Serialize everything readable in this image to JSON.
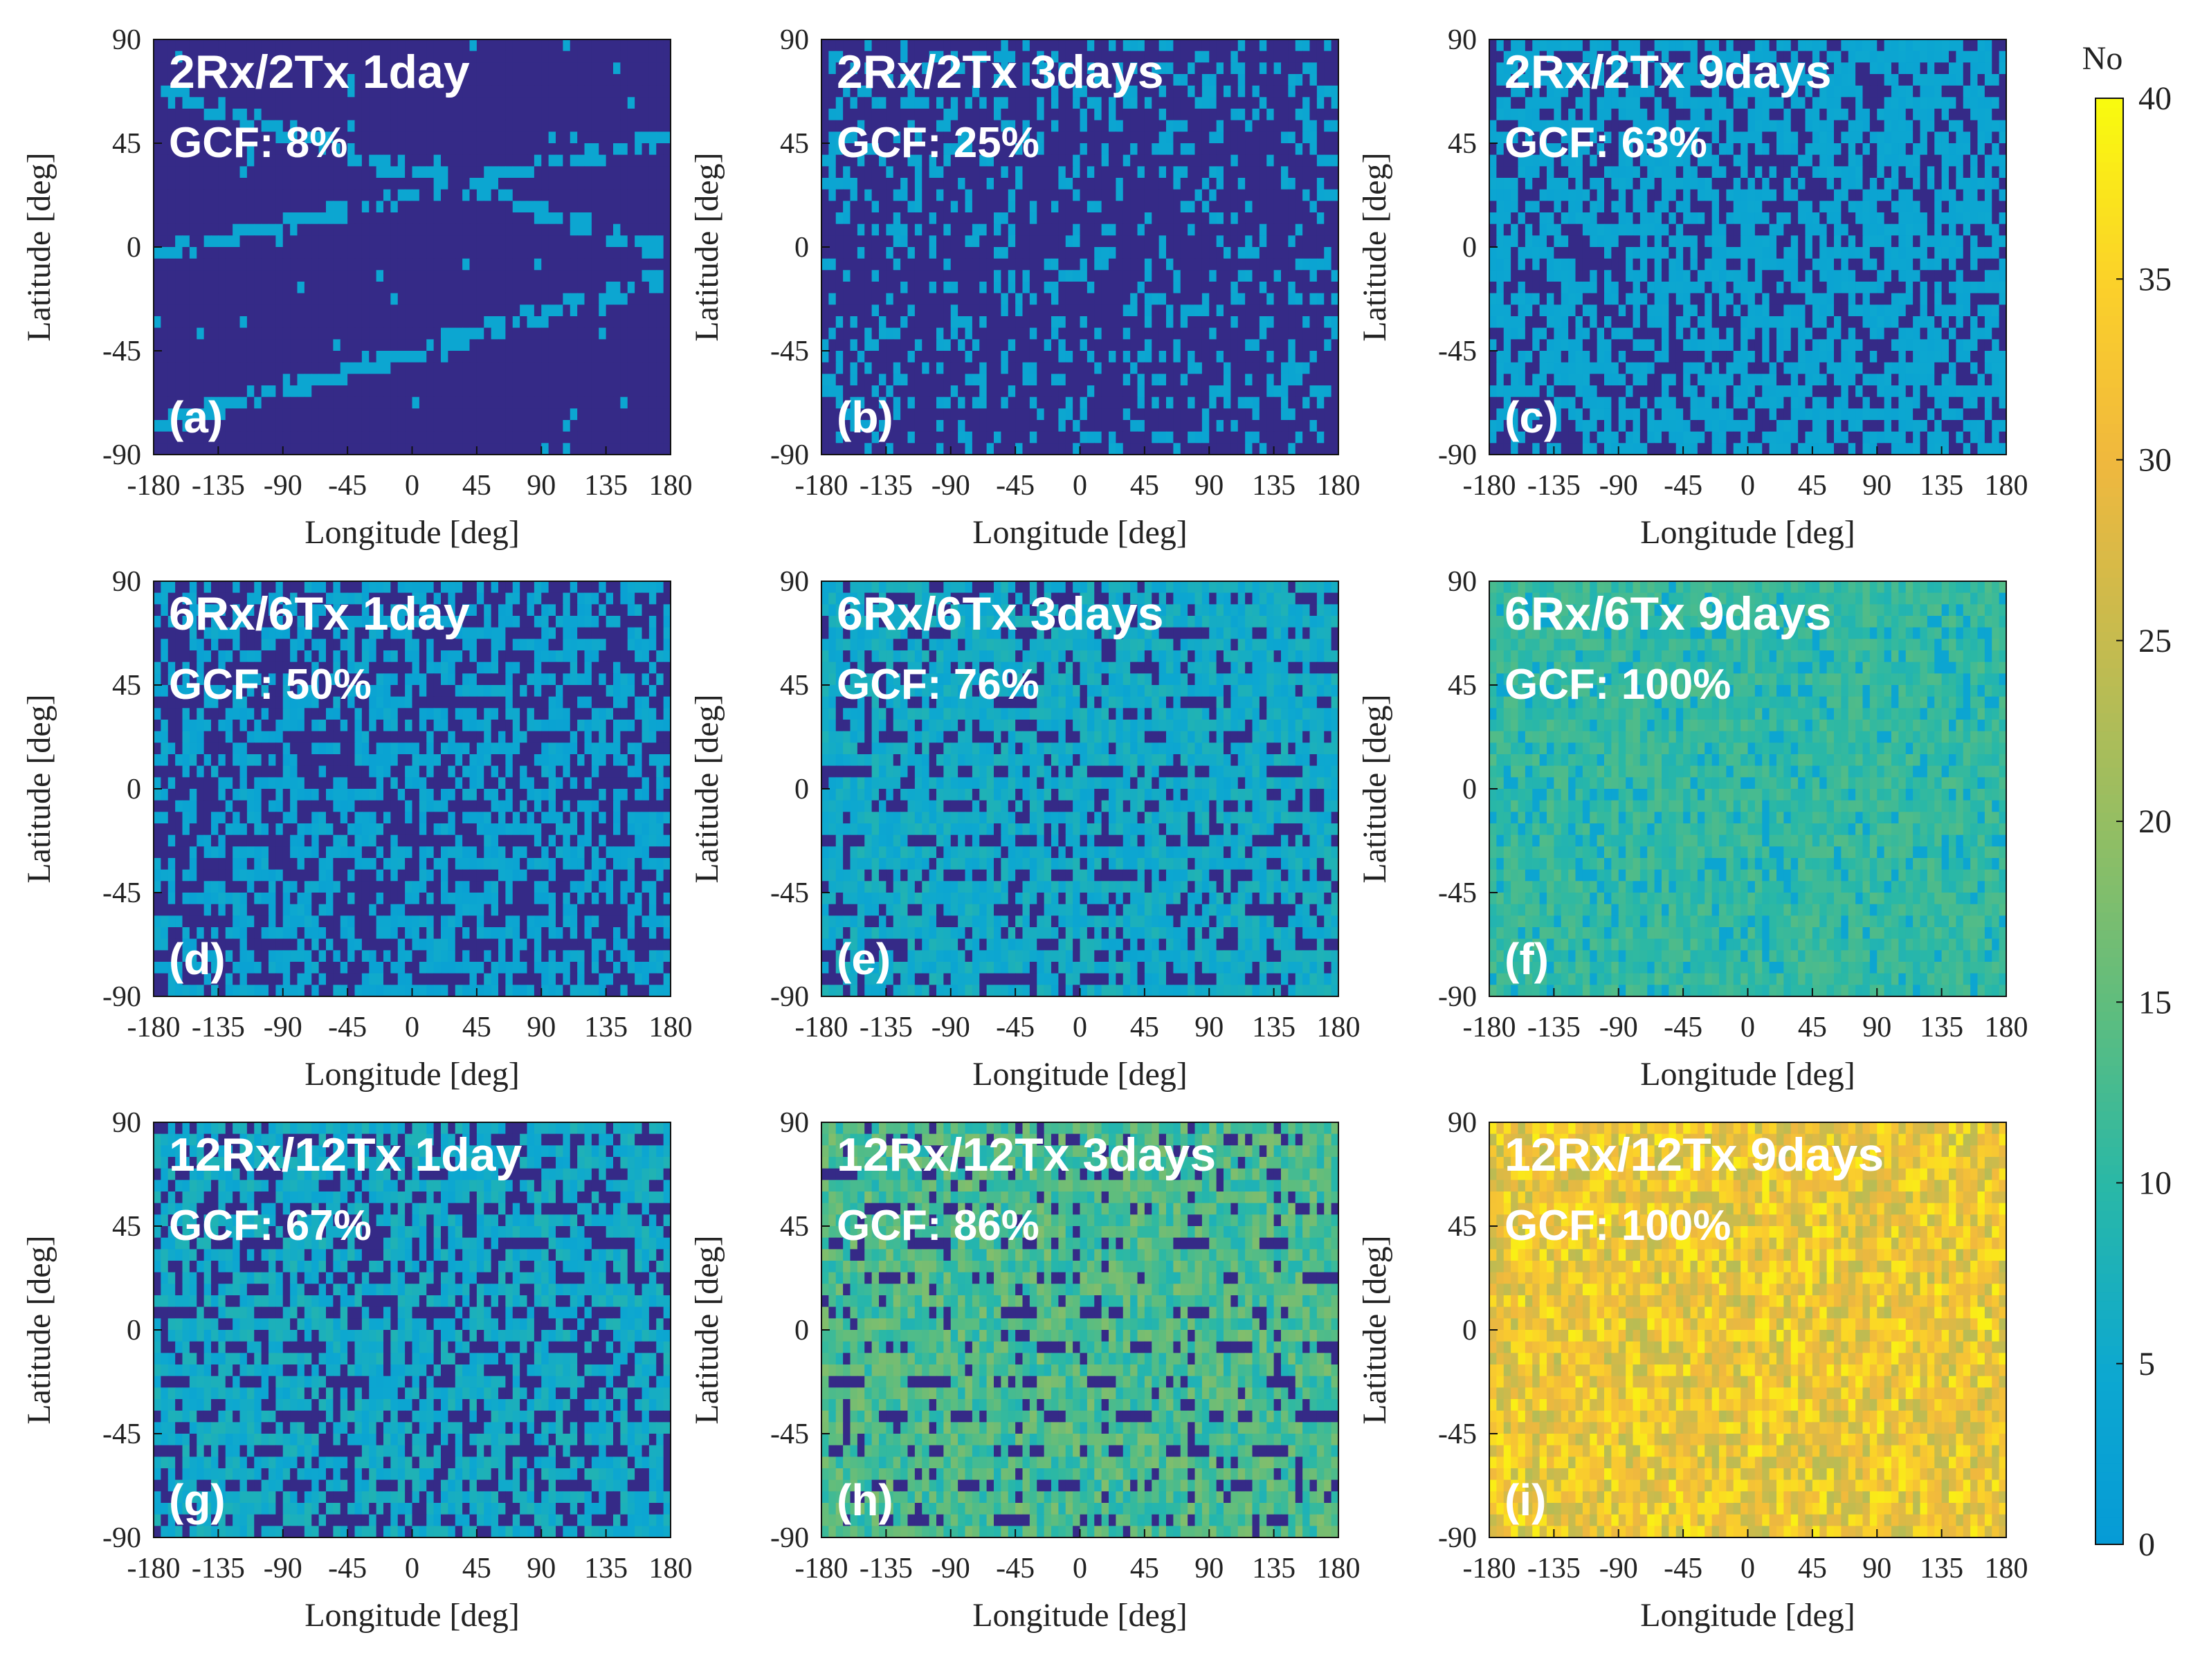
{
  "figure": {
    "colorbar": {
      "label": "No",
      "min": 0,
      "max": 40,
      "ticks": [
        0,
        5,
        10,
        15,
        20,
        25,
        30,
        35,
        40
      ]
    },
    "colors": {
      "dark_navy": "#352a87",
      "cyan_low": "#139ed2",
      "cyan_mid": "#06a4ca",
      "teal": "#36b8a0",
      "green": "#6ebd78",
      "olive": "#a8be5f",
      "orange": "#f4b93b",
      "yellow": "#f9fb0e"
    }
  },
  "chart_data": [
    {
      "type": "heatmap",
      "id": "a",
      "title": "2Rx/2Tx 1day",
      "gcf_label": "GCF: 8%",
      "panel_label": "(a)",
      "xlabel": "Longitude [deg]",
      "ylabel": "Latitude [deg]",
      "xlim": [
        -180,
        180
      ],
      "ylim": [
        -90,
        90
      ],
      "xticks": [
        "-180",
        "-135",
        "-90",
        "-45",
        "0",
        "45",
        "90",
        "135",
        "180"
      ],
      "yticks": [
        "90",
        "45",
        "0",
        "-45",
        "-90"
      ],
      "coverage_fraction": 0.08,
      "typical_value": 4,
      "pattern": "diagonal"
    },
    {
      "type": "heatmap",
      "id": "b",
      "title": "2Rx/2Tx 3days",
      "gcf_label": "GCF: 25%",
      "panel_label": "(b)",
      "xlabel": "Longitude [deg]",
      "ylabel": "Latitude [deg]",
      "xlim": [
        -180,
        180
      ],
      "ylim": [
        -90,
        90
      ],
      "xticks": [
        "-180",
        "-135",
        "-90",
        "-45",
        "0",
        "45",
        "90",
        "135",
        "180"
      ],
      "yticks": [
        "90",
        "45",
        "0",
        "-45",
        "-90"
      ],
      "coverage_fraction": 0.25,
      "typical_value": 4,
      "pattern": "scatter"
    },
    {
      "type": "heatmap",
      "id": "c",
      "title": "2Rx/2Tx 9days",
      "gcf_label": "GCF: 63%",
      "panel_label": "(c)",
      "xlabel": "Longitude [deg]",
      "ylabel": "Latitude [deg]",
      "xlim": [
        -180,
        180
      ],
      "ylim": [
        -90,
        90
      ],
      "xticks": [
        "-180",
        "-135",
        "-90",
        "-45",
        "0",
        "45",
        "90",
        "135",
        "180"
      ],
      "yticks": [
        "90",
        "45",
        "0",
        "-45",
        "-90"
      ],
      "coverage_fraction": 0.63,
      "typical_value": 4,
      "pattern": "scatter"
    },
    {
      "type": "heatmap",
      "id": "d",
      "title": "6Rx/6Tx 1day",
      "gcf_label": "GCF: 50%",
      "panel_label": "(d)",
      "xlabel": "Longitude [deg]",
      "ylabel": "Latitude [deg]",
      "xlim": [
        -180,
        180
      ],
      "ylim": [
        -90,
        90
      ],
      "xticks": [
        "-180",
        "-135",
        "-90",
        "-45",
        "0",
        "45",
        "90",
        "135",
        "180"
      ],
      "yticks": [
        "90",
        "45",
        "0",
        "-45",
        "-90"
      ],
      "coverage_fraction": 0.5,
      "typical_value": 4,
      "pattern": "bands"
    },
    {
      "type": "heatmap",
      "id": "e",
      "title": "6Rx/6Tx 3days",
      "gcf_label": "GCF: 76%",
      "panel_label": "(e)",
      "xlabel": "Longitude [deg]",
      "ylabel": "Latitude [deg]",
      "xlim": [
        -180,
        180
      ],
      "ylim": [
        -90,
        90
      ],
      "xticks": [
        "-180",
        "-135",
        "-90",
        "-45",
        "0",
        "45",
        "90",
        "135",
        "180"
      ],
      "yticks": [
        "90",
        "45",
        "0",
        "-45",
        "-90"
      ],
      "coverage_fraction": 0.76,
      "typical_value": 6,
      "pattern": "bands"
    },
    {
      "type": "heatmap",
      "id": "f",
      "title": "6Rx/6Tx 9days",
      "gcf_label": "GCF: 100%",
      "panel_label": "(f)",
      "xlabel": "Longitude [deg]",
      "ylabel": "Latitude [deg]",
      "xlim": [
        -180,
        180
      ],
      "ylim": [
        -90,
        90
      ],
      "xticks": [
        "-180",
        "-135",
        "-90",
        "-45",
        "0",
        "45",
        "90",
        "135",
        "180"
      ],
      "yticks": [
        "90",
        "45",
        "0",
        "-45",
        "-90"
      ],
      "coverage_fraction": 1.0,
      "typical_value": 11,
      "pattern": "full"
    },
    {
      "type": "heatmap",
      "id": "g",
      "title": "12Rx/12Tx 1day",
      "gcf_label": "GCF: 67%",
      "panel_label": "(g)",
      "xlabel": "Longitude [deg]",
      "ylabel": "Latitude [deg]",
      "xlim": [
        -180,
        180
      ],
      "ylim": [
        -90,
        90
      ],
      "xticks": [
        "-180",
        "-135",
        "-90",
        "-45",
        "0",
        "45",
        "90",
        "135",
        "180"
      ],
      "yticks": [
        "90",
        "45",
        "0",
        "-45",
        "-90"
      ],
      "coverage_fraction": 0.67,
      "typical_value": 6,
      "pattern": "bands"
    },
    {
      "type": "heatmap",
      "id": "h",
      "title": "12Rx/12Tx 3days",
      "gcf_label": "GCF: 86%",
      "panel_label": "(h)",
      "xlabel": "Longitude [deg]",
      "ylabel": "Latitude [deg]",
      "xlim": [
        -180,
        180
      ],
      "ylim": [
        -90,
        90
      ],
      "xticks": [
        "-180",
        "-135",
        "-90",
        "-45",
        "0",
        "45",
        "90",
        "135",
        "180"
      ],
      "yticks": [
        "90",
        "45",
        "0",
        "-45",
        "-90"
      ],
      "coverage_fraction": 0.86,
      "typical_value": 13,
      "pattern": "bands"
    },
    {
      "type": "heatmap",
      "id": "i",
      "title": "12Rx/12Tx 9days",
      "gcf_label": "GCF: 100%",
      "panel_label": "(i)",
      "xlabel": "Longitude [deg]",
      "ylabel": "Latitude [deg]",
      "xlim": [
        -180,
        180
      ],
      "ylim": [
        -90,
        90
      ],
      "xticks": [
        "-180",
        "-135",
        "-90",
        "-45",
        "0",
        "45",
        "90",
        "135",
        "180"
      ],
      "yticks": [
        "90",
        "45",
        "0",
        "-45",
        "-90"
      ],
      "coverage_fraction": 1.0,
      "typical_value": 31,
      "pattern": "full"
    }
  ]
}
